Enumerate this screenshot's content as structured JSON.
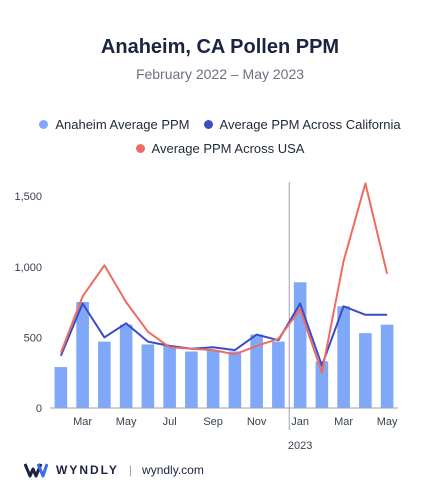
{
  "title": "Anaheim, CA Pollen PPM",
  "subtitle": "February 2022 – May 2023",
  "footer": {
    "brand": "WYNDLY",
    "separator": "|",
    "url": "wyndly.com"
  },
  "colors": {
    "bar": "#7fa9f8",
    "california": "#3a4dc7",
    "usa": "#ee6b61"
  },
  "chart_data": {
    "type": "bar",
    "categories": [
      "Feb 2022",
      "Mar 2022",
      "Apr 2022",
      "May 2022",
      "Jun 2022",
      "Jul 2022",
      "Aug 2022",
      "Sep 2022",
      "Oct 2022",
      "Nov 2022",
      "Dec 2022",
      "Jan 2023",
      "Feb 2023",
      "Mar 2023",
      "Apr 2023",
      "May 2023"
    ],
    "x_tick_labels": [
      "",
      "Mar",
      "",
      "May",
      "",
      "Jul",
      "",
      "Sep",
      "",
      "Nov",
      "",
      "Jan",
      "",
      "Mar",
      "",
      "May"
    ],
    "year_label": "2023",
    "series": [
      {
        "name": "Anaheim Average PPM",
        "kind": "bar",
        "values": [
          290,
          750,
          470,
          590,
          450,
          440,
          400,
          410,
          400,
          520,
          470,
          890,
          330,
          720,
          530,
          590
        ]
      },
      {
        "name": "Average PPM Across California",
        "kind": "line",
        "values": [
          370,
          740,
          500,
          600,
          470,
          440,
          420,
          430,
          410,
          520,
          480,
          740,
          300,
          720,
          660,
          660
        ]
      },
      {
        "name": "Average PPM Across USA",
        "kind": "line",
        "values": [
          390,
          790,
          1010,
          750,
          540,
          430,
          420,
          410,
          380,
          440,
          490,
          700,
          250,
          1040,
          1590,
          950
        ]
      }
    ],
    "y_ticks": [
      0,
      500,
      1000,
      1500
    ],
    "y_tick_labels": [
      "0",
      "500",
      "1,000",
      "1,500"
    ],
    "ylim": [
      0,
      1600
    ],
    "legend_position": "top",
    "grid": false
  }
}
